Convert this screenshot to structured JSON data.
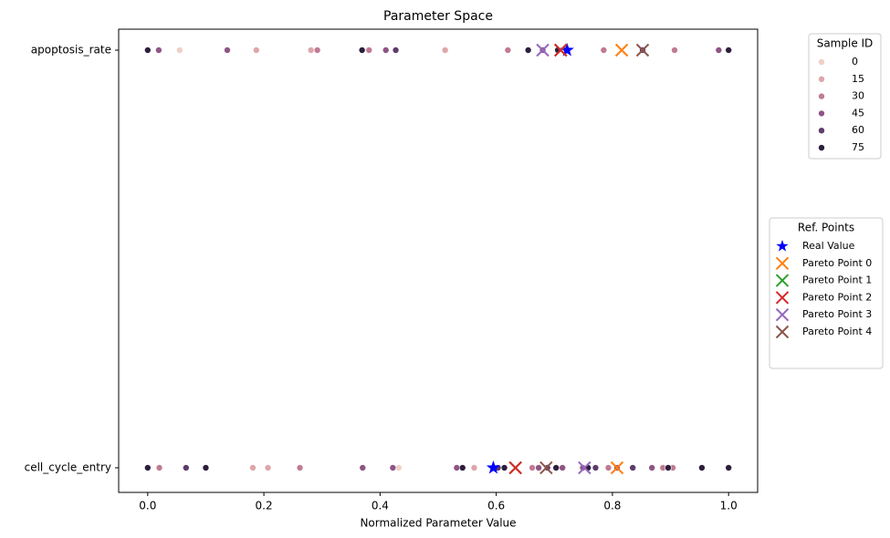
{
  "chart_data": {
    "type": "scatter",
    "title": "Parameter Space",
    "xlabel": "Normalized Parameter Value",
    "categories": [
      "apoptosis_rate",
      "cell_cycle_entry"
    ],
    "xlim": [
      -0.05,
      1.05
    ],
    "xticks": [
      {
        "value": 0,
        "label": "0.0"
      },
      {
        "value": 0.2,
        "label": "0.2"
      },
      {
        "value": 0.4,
        "label": "0.4"
      },
      {
        "value": 0.6,
        "label": "0.6"
      },
      {
        "value": 0.8,
        "label": "0.8"
      },
      {
        "value": 1,
        "label": "1.0"
      }
    ],
    "sample_legend_title": "Sample ID",
    "ref_legend_title": "Ref. Points",
    "series": [
      {
        "name": "0",
        "legend": "sample",
        "marker": "circle",
        "color": "#efd0c6",
        "x": [
          0.055,
          0.432
        ],
        "y": [
          "apoptosis_rate",
          "cell_cycle_entry"
        ]
      },
      {
        "name": "15",
        "legend": "sample",
        "marker": "circle",
        "color": "#dea6aa",
        "x": [
          0.187,
          0.281,
          0.512,
          0.181,
          0.207,
          0.562
        ],
        "y": [
          "apoptosis_rate",
          "apoptosis_rate",
          "apoptosis_rate",
          "cell_cycle_entry",
          "cell_cycle_entry",
          "cell_cycle_entry"
        ]
      },
      {
        "name": "30",
        "legend": "sample",
        "marker": "circle",
        "color": "#c07b94",
        "x": [
          0.292,
          0.381,
          0.62,
          0.785,
          0.907,
          0.02,
          0.262,
          0.662,
          0.793,
          0.887,
          0.904
        ],
        "y": [
          "apoptosis_rate",
          "apoptosis_rate",
          "apoptosis_rate",
          "apoptosis_rate",
          "apoptosis_rate",
          "cell_cycle_entry",
          "cell_cycle_entry",
          "cell_cycle_entry",
          "cell_cycle_entry",
          "cell_cycle_entry",
          "cell_cycle_entry"
        ]
      },
      {
        "name": "45",
        "legend": "sample",
        "marker": "circle",
        "color": "#8e5585",
        "x": [
          0.019,
          0.137,
          0.41,
          0.68,
          0.983,
          0.37,
          0.422,
          0.532,
          0.673,
          0.714,
          0.749,
          0.808,
          0.868
        ],
        "y": [
          "apoptosis_rate",
          "apoptosis_rate",
          "apoptosis_rate",
          "apoptosis_rate",
          "apoptosis_rate",
          "cell_cycle_entry",
          "cell_cycle_entry",
          "cell_cycle_entry",
          "cell_cycle_entry",
          "cell_cycle_entry",
          "cell_cycle_entry",
          "cell_cycle_entry",
          "cell_cycle_entry"
        ]
      },
      {
        "name": "60",
        "legend": "sample",
        "marker": "circle",
        "color": "#5e3c6c",
        "x": [
          0.427,
          0.852,
          0.066,
          0.603,
          0.688,
          0.771,
          0.835
        ],
        "y": [
          "apoptosis_rate",
          "apoptosis_rate",
          "cell_cycle_entry",
          "cell_cycle_entry",
          "cell_cycle_entry",
          "cell_cycle_entry",
          "cell_cycle_entry"
        ]
      },
      {
        "name": "75",
        "legend": "sample",
        "marker": "circle",
        "color": "#2d1e3e",
        "x": [
          0,
          0.369,
          0.655,
          0.706,
          1,
          0,
          0.1,
          0.542,
          0.614,
          0.703,
          0.758,
          0.896,
          0.954,
          1
        ],
        "y": [
          "apoptosis_rate",
          "apoptosis_rate",
          "apoptosis_rate",
          "apoptosis_rate",
          "apoptosis_rate",
          "cell_cycle_entry",
          "cell_cycle_entry",
          "cell_cycle_entry",
          "cell_cycle_entry",
          "cell_cycle_entry",
          "cell_cycle_entry",
          "cell_cycle_entry",
          "cell_cycle_entry",
          "cell_cycle_entry"
        ]
      },
      {
        "name": "Real Value",
        "legend": "ref",
        "marker": "star",
        "color": "#0000ff",
        "x": [
          0.722,
          0.595
        ],
        "y": [
          "apoptosis_rate",
          "cell_cycle_entry"
        ]
      },
      {
        "name": "Pareto Point 0",
        "legend": "ref",
        "marker": "x",
        "color": "#ff7f0e",
        "x": [
          0.816,
          0.808
        ],
        "y": [
          "apoptosis_rate",
          "cell_cycle_entry"
        ]
      },
      {
        "name": "Pareto Point 1",
        "legend": "ref",
        "marker": "x",
        "color": "#2ca02c",
        "x": [
          0.711,
          0.633
        ],
        "y": [
          "apoptosis_rate",
          "cell_cycle_entry"
        ]
      },
      {
        "name": "Pareto Point 2",
        "legend": "ref",
        "marker": "x",
        "color": "#d62728",
        "x": [
          0.711,
          0.633
        ],
        "y": [
          "apoptosis_rate",
          "cell_cycle_entry"
        ]
      },
      {
        "name": "Pareto Point 3",
        "legend": "ref",
        "marker": "x",
        "color": "#9467bd",
        "x": [
          0.68,
          0.752
        ],
        "y": [
          "apoptosis_rate",
          "cell_cycle_entry"
        ]
      },
      {
        "name": "Pareto Point 4",
        "legend": "ref",
        "marker": "x",
        "color": "#8c564b",
        "x": [
          0.852,
          0.686
        ],
        "y": [
          "apoptosis_rate",
          "cell_cycle_entry"
        ]
      }
    ]
  }
}
